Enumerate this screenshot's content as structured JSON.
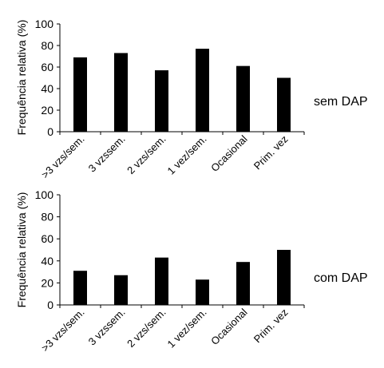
{
  "chart_data": [
    {
      "type": "bar",
      "categories": [
        ">3 vzs/sem.",
        "3 vzssem.",
        "2 vzs/sem.",
        "1 vez/sem.",
        "Ocasional",
        "Prim. vez"
      ],
      "values": [
        69,
        73,
        57,
        77,
        61,
        50
      ],
      "ylabel": "Frequência relativa (%)",
      "xlabel": "",
      "ylim": [
        0,
        100
      ],
      "yticks": [
        0,
        20,
        40,
        60,
        80,
        100
      ],
      "annotation": "sem DAP",
      "grid": false,
      "bar_color": "#000000"
    },
    {
      "type": "bar",
      "categories": [
        ">3 vzs/sem.",
        "3 vzssem.",
        "2 vzs/sem.",
        "1 vez/sem.",
        "Ocasional",
        "Prim. vez"
      ],
      "values": [
        31,
        27,
        43,
        23,
        39,
        50
      ],
      "ylabel": "Frequência relativa (%)",
      "xlabel": "",
      "ylim": [
        0,
        100
      ],
      "yticks": [
        0,
        20,
        40,
        60,
        80,
        100
      ],
      "annotation": "com DAP",
      "grid": false,
      "bar_color": "#000000"
    }
  ]
}
